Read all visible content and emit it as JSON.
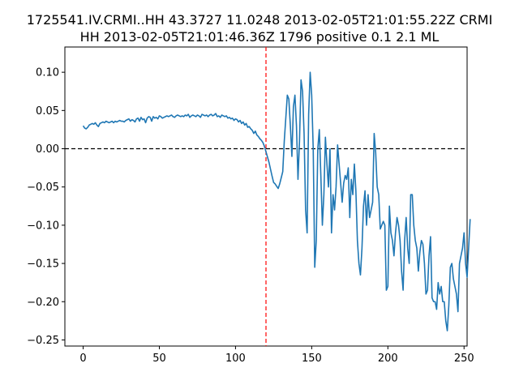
{
  "chart_data": {
    "type": "line",
    "title": "1725541.IV.CRMI..HH 43.3727 11.0248 2013-02-05T21:01:55.22Z CRMI",
    "subtitle": "HH 2013-02-05T21:01:46.36Z 1796 positive 0.1 2.1 ML",
    "xlabel": "",
    "ylabel": "",
    "xlim": [
      -12,
      252
    ],
    "ylim": [
      -0.258,
      0.133
    ],
    "x_ticks": [
      0,
      50,
      100,
      150,
      200,
      250
    ],
    "x_tick_labels": [
      "0",
      "50",
      "100",
      "150",
      "200",
      "250"
    ],
    "y_ticks": [
      0.1,
      0.05,
      0.0,
      -0.05,
      -0.1,
      -0.15,
      -0.2,
      -0.25
    ],
    "y_tick_labels": [
      "0.10",
      "0.05",
      "0.00",
      "−0.05",
      "−0.10",
      "−0.15",
      "−0.20",
      "−0.25"
    ],
    "grid": false,
    "reference_lines": {
      "horizontal_y": 0.0,
      "vertical_x": 120
    },
    "colors": {
      "series": "#1f77b4",
      "zero_line": "#000000",
      "onset_line": "#ff0000"
    },
    "series": [
      {
        "values": [
          0.03,
          0.027,
          0.026,
          0.028,
          0.031,
          0.032,
          0.033,
          0.032,
          0.034,
          0.031,
          0.029,
          0.033,
          0.034,
          0.035,
          0.034,
          0.036,
          0.035,
          0.034,
          0.035,
          0.036,
          0.034,
          0.036,
          0.035,
          0.036,
          0.037,
          0.036,
          0.036,
          0.035,
          0.037,
          0.038,
          0.039,
          0.036,
          0.038,
          0.037,
          0.035,
          0.039,
          0.04,
          0.036,
          0.041,
          0.038,
          0.039,
          0.034,
          0.04,
          0.042,
          0.041,
          0.036,
          0.042,
          0.04,
          0.041,
          0.039,
          0.043,
          0.042,
          0.04,
          0.041,
          0.042,
          0.043,
          0.042,
          0.043,
          0.044,
          0.042,
          0.041,
          0.043,
          0.044,
          0.043,
          0.042,
          0.043,
          0.042,
          0.044,
          0.043,
          0.045,
          0.041,
          0.043,
          0.044,
          0.043,
          0.042,
          0.044,
          0.043,
          0.041,
          0.045,
          0.044,
          0.043,
          0.044,
          0.042,
          0.044,
          0.045,
          0.043,
          0.044,
          0.046,
          0.042,
          0.043,
          0.041,
          0.044,
          0.043,
          0.042,
          0.043,
          0.04,
          0.041,
          0.039,
          0.04,
          0.037,
          0.039,
          0.038,
          0.035,
          0.037,
          0.033,
          0.035,
          0.031,
          0.033,
          0.028,
          0.029,
          0.026,
          0.024,
          0.02,
          0.023,
          0.018,
          0.016,
          0.013,
          0.011,
          0.008,
          0.003,
          -0.004,
          -0.011,
          -0.018,
          -0.027,
          -0.036,
          -0.044,
          -0.046,
          -0.049,
          -0.052,
          -0.046,
          -0.038,
          -0.03,
          0.01,
          0.04,
          0.07,
          0.065,
          0.03,
          -0.01,
          0.055,
          0.07,
          0.03,
          -0.04,
          0.01,
          0.09,
          0.075,
          0.02,
          -0.08,
          -0.11,
          0.045,
          0.1,
          0.07,
          0.0,
          -0.155,
          -0.12,
          0.0,
          0.025,
          -0.035,
          -0.1,
          -0.06,
          0.015,
          -0.02,
          -0.05,
          0.0,
          -0.11,
          -0.06,
          -0.08,
          -0.05,
          0.005,
          -0.02,
          -0.045,
          -0.07,
          -0.045,
          -0.035,
          -0.04,
          -0.025,
          -0.09,
          -0.04,
          -0.06,
          -0.02,
          -0.055,
          -0.12,
          -0.15,
          -0.165,
          -0.13,
          -0.075,
          -0.055,
          -0.1,
          -0.06,
          -0.09,
          -0.08,
          -0.07,
          0.02,
          -0.005,
          -0.05,
          -0.06,
          -0.105,
          -0.1,
          -0.095,
          -0.1,
          -0.185,
          -0.18,
          -0.075,
          -0.11,
          -0.12,
          -0.14,
          -0.11,
          -0.09,
          -0.1,
          -0.12,
          -0.16,
          -0.185,
          -0.12,
          -0.09,
          -0.13,
          -0.15,
          -0.06,
          -0.06,
          -0.1,
          -0.12,
          -0.13,
          -0.16,
          -0.135,
          -0.12,
          -0.125,
          -0.15,
          -0.19,
          -0.185,
          -0.14,
          -0.115,
          -0.195,
          -0.2,
          -0.2,
          -0.21,
          -0.175,
          -0.19,
          -0.18,
          -0.2,
          -0.2,
          -0.225,
          -0.238,
          -0.205,
          -0.155,
          -0.15,
          -0.17,
          -0.18,
          -0.19,
          -0.213,
          -0.15,
          -0.14,
          -0.13,
          -0.11,
          -0.15,
          -0.168,
          -0.13,
          -0.092
        ]
      }
    ]
  }
}
